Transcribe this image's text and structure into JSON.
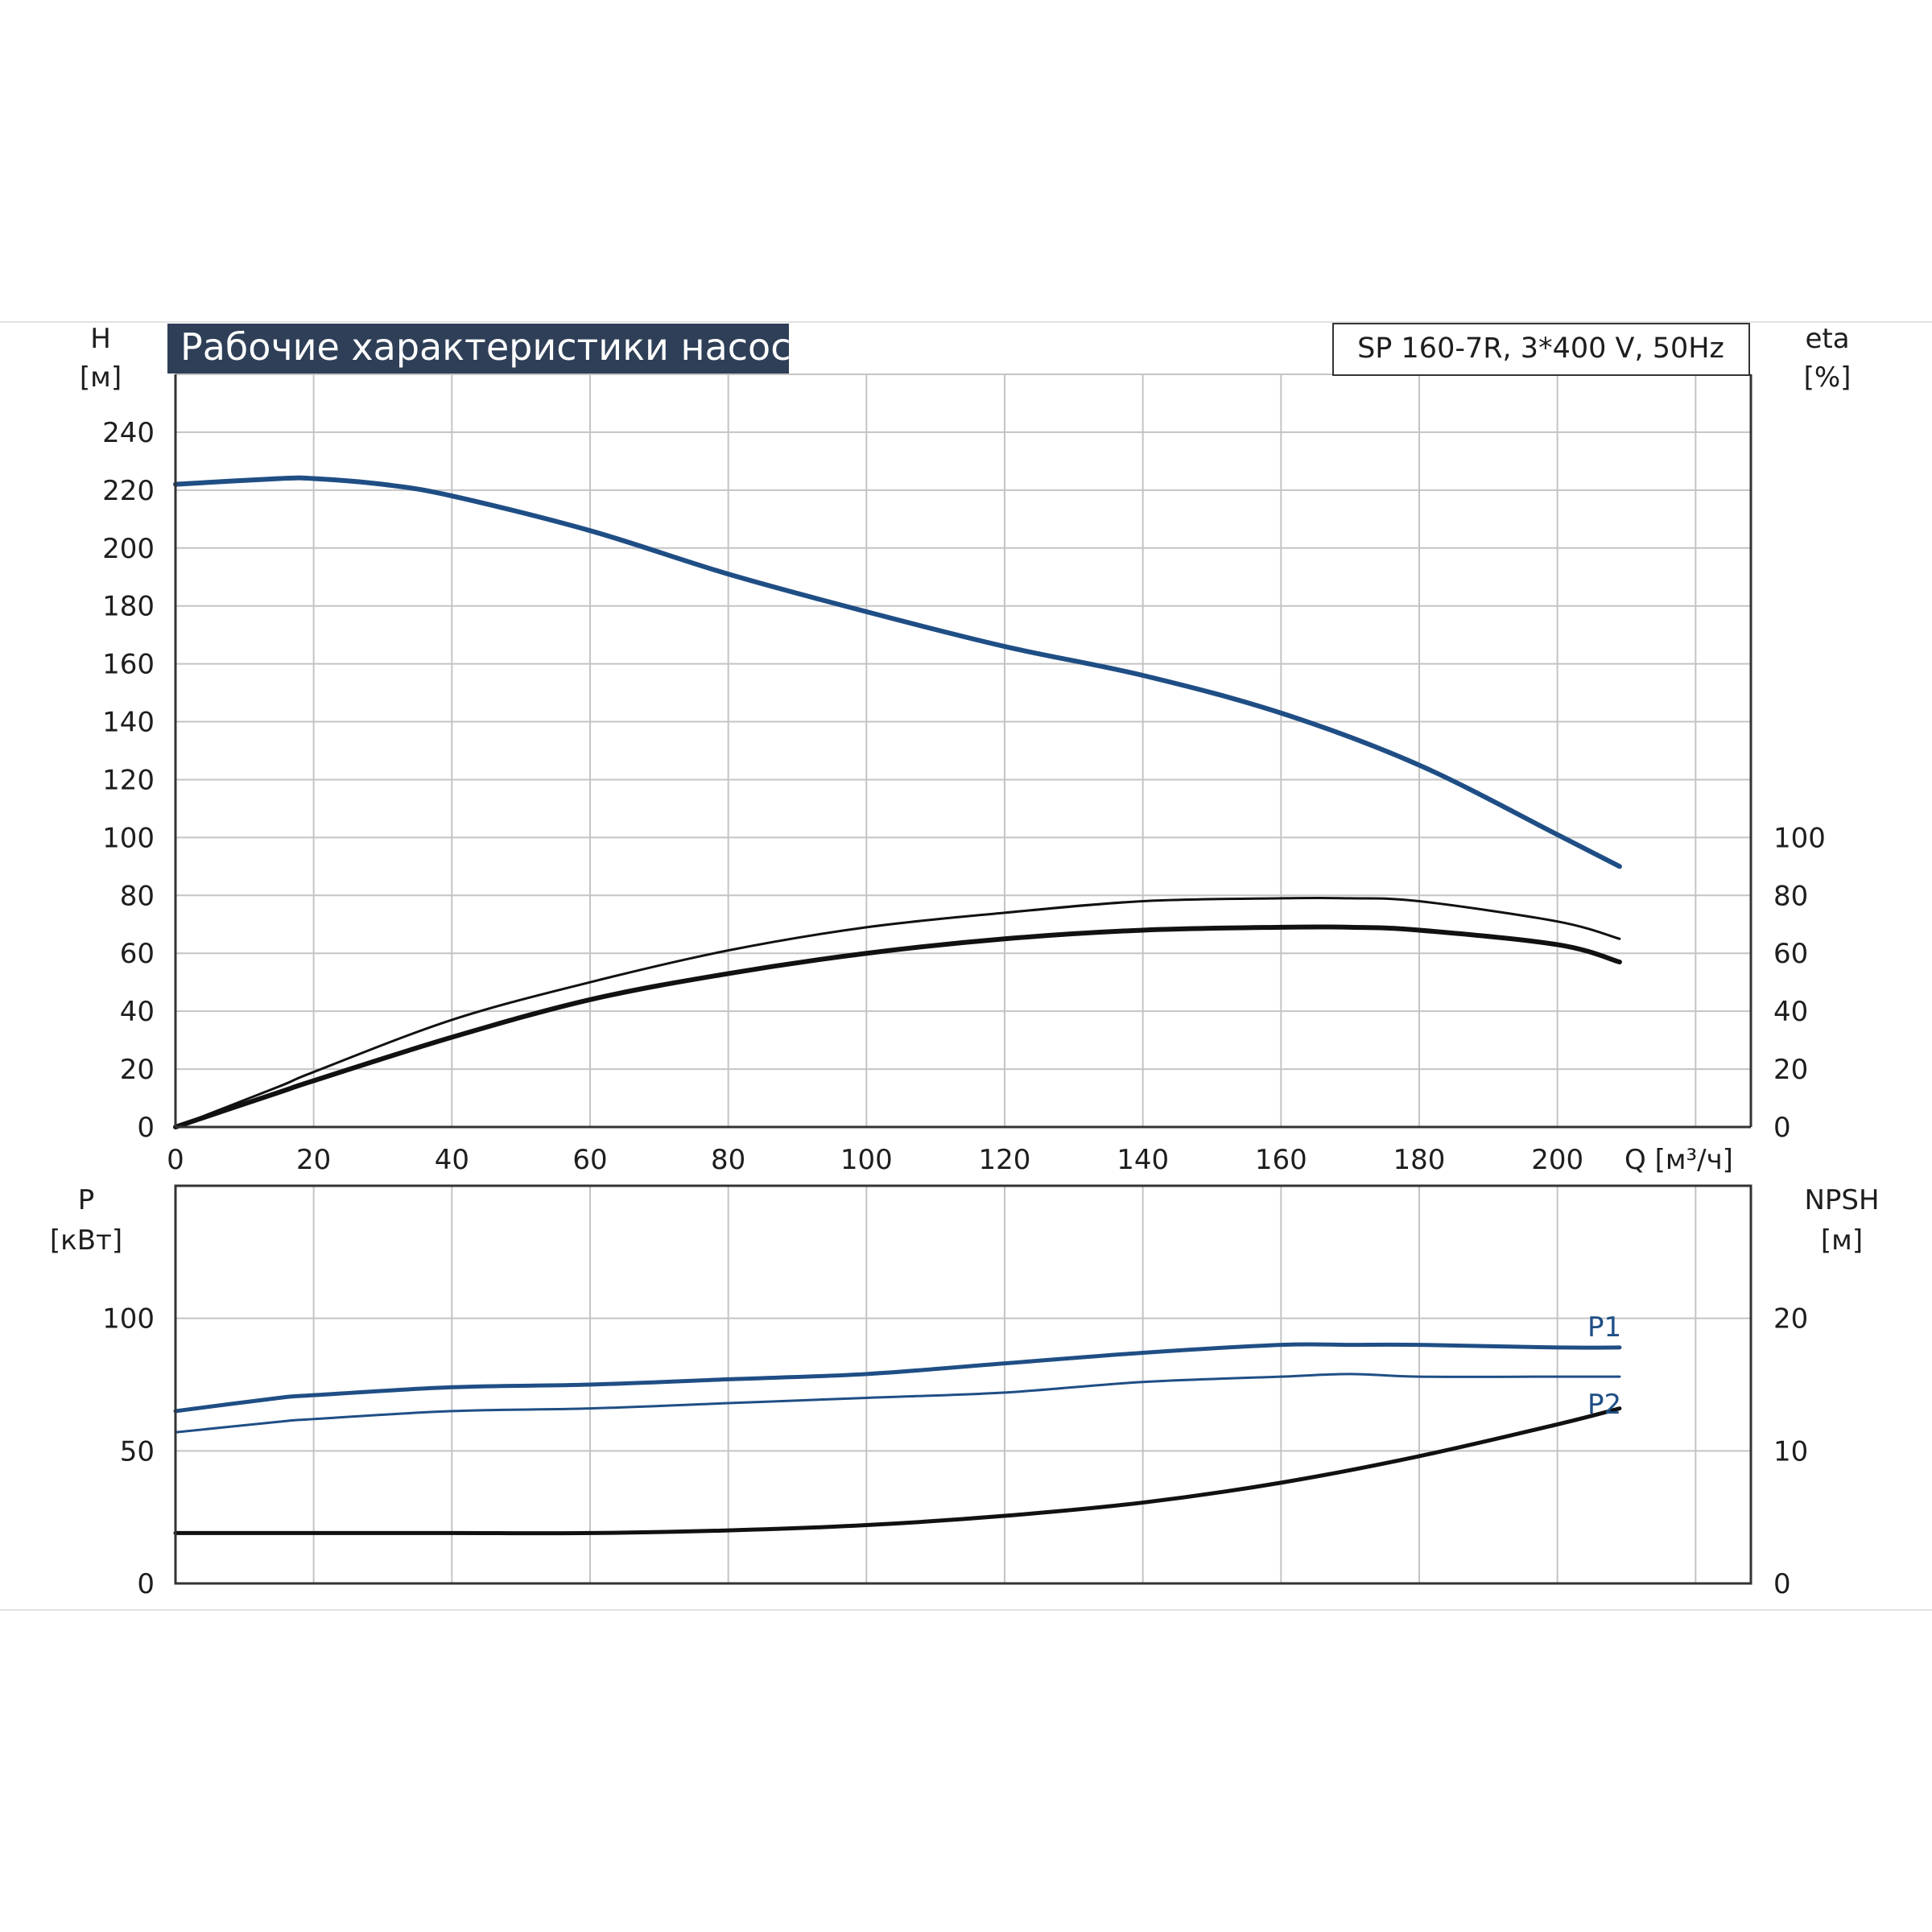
{
  "title": "Рабочие характеристики насоса",
  "model": "SP 160-7R, 3*400 V, 50Hz",
  "colors": {
    "blue": "#1f4e85",
    "black": "#111111",
    "grid": "#c4c4c4",
    "title_bg": "#2e3f57"
  },
  "chart_data": [
    {
      "type": "line",
      "grid": true,
      "x_axis": {
        "unit_label": "Q [м³/ч]",
        "ticks": [
          "0",
          "20",
          "40",
          "60",
          "80",
          "100",
          "120",
          "140",
          "160",
          "180",
          "200"
        ],
        "range": [
          0,
          228
        ]
      },
      "y_left": {
        "label": "H",
        "unit": "[м]",
        "ticks": [
          "0",
          "20",
          "40",
          "60",
          "80",
          "100",
          "120",
          "140",
          "160",
          "180",
          "200",
          "220",
          "240"
        ],
        "range": [
          0,
          260
        ]
      },
      "y_right": {
        "label": "eta",
        "unit": "[%]",
        "ticks": [
          "0",
          "20",
          "40",
          "60",
          "80",
          "100"
        ],
        "range": [
          0,
          260
        ]
      },
      "series": [
        {
          "axis": "left",
          "color": "blue",
          "width": 6,
          "x": [
            0,
            15,
            20,
            30,
            40,
            60,
            80,
            100,
            120,
            140,
            160,
            180,
            200,
            209
          ],
          "y": [
            222,
            224,
            224,
            222,
            218,
            206,
            191,
            178,
            166,
            156,
            143,
            125,
            101,
            90
          ]
        },
        {
          "axis": "right",
          "color": "black",
          "width": 3,
          "x": [
            0,
            15,
            20,
            40,
            60,
            80,
            100,
            120,
            140,
            160,
            170,
            180,
            200,
            209
          ],
          "y": [
            0,
            14,
            19,
            37,
            50,
            61,
            69,
            74,
            78,
            79,
            79,
            78,
            71,
            65
          ]
        },
        {
          "axis": "right",
          "color": "black",
          "width": 6,
          "x": [
            0,
            15,
            20,
            40,
            60,
            80,
            100,
            120,
            140,
            160,
            170,
            180,
            200,
            209
          ],
          "y": [
            0,
            12,
            16,
            31,
            44,
            53,
            60,
            65,
            68,
            69,
            69,
            68,
            63,
            57
          ]
        }
      ]
    },
    {
      "type": "line",
      "grid": true,
      "x_axis": {
        "range": [
          0,
          228
        ]
      },
      "y_left": {
        "label": "P",
        "unit": "[кВт]",
        "ticks": [
          "0",
          "50",
          "100"
        ],
        "range": [
          0,
          150
        ]
      },
      "y_right": {
        "label": "NPSH",
        "unit": "[м]",
        "ticks": [
          "0",
          "10",
          "20"
        ],
        "range": [
          0,
          30
        ]
      },
      "series": [
        {
          "name": "P1",
          "axis": "left",
          "color": "blue",
          "width": 5,
          "x": [
            0,
            15,
            20,
            40,
            60,
            80,
            100,
            120,
            140,
            160,
            170,
            180,
            200,
            209
          ],
          "y": [
            65,
            70,
            71,
            74,
            75,
            77,
            79,
            83,
            87,
            90,
            90,
            90,
            89,
            89
          ]
        },
        {
          "name": "P2",
          "axis": "left",
          "color": "blue",
          "width": 3,
          "x": [
            0,
            15,
            20,
            40,
            60,
            80,
            100,
            120,
            140,
            160,
            170,
            180,
            200,
            209
          ],
          "y": [
            57,
            61,
            62,
            65,
            66,
            68,
            70,
            72,
            76,
            78,
            79,
            78,
            78,
            78
          ]
        },
        {
          "axis": "right",
          "color": "black",
          "width": 5,
          "x": [
            0,
            15,
            20,
            40,
            60,
            80,
            100,
            120,
            140,
            160,
            180,
            200,
            209
          ],
          "y": [
            3.8,
            3.8,
            3.8,
            3.8,
            3.8,
            4.0,
            4.4,
            5.1,
            6.1,
            7.6,
            9.6,
            12.0,
            13.2
          ]
        }
      ]
    }
  ]
}
